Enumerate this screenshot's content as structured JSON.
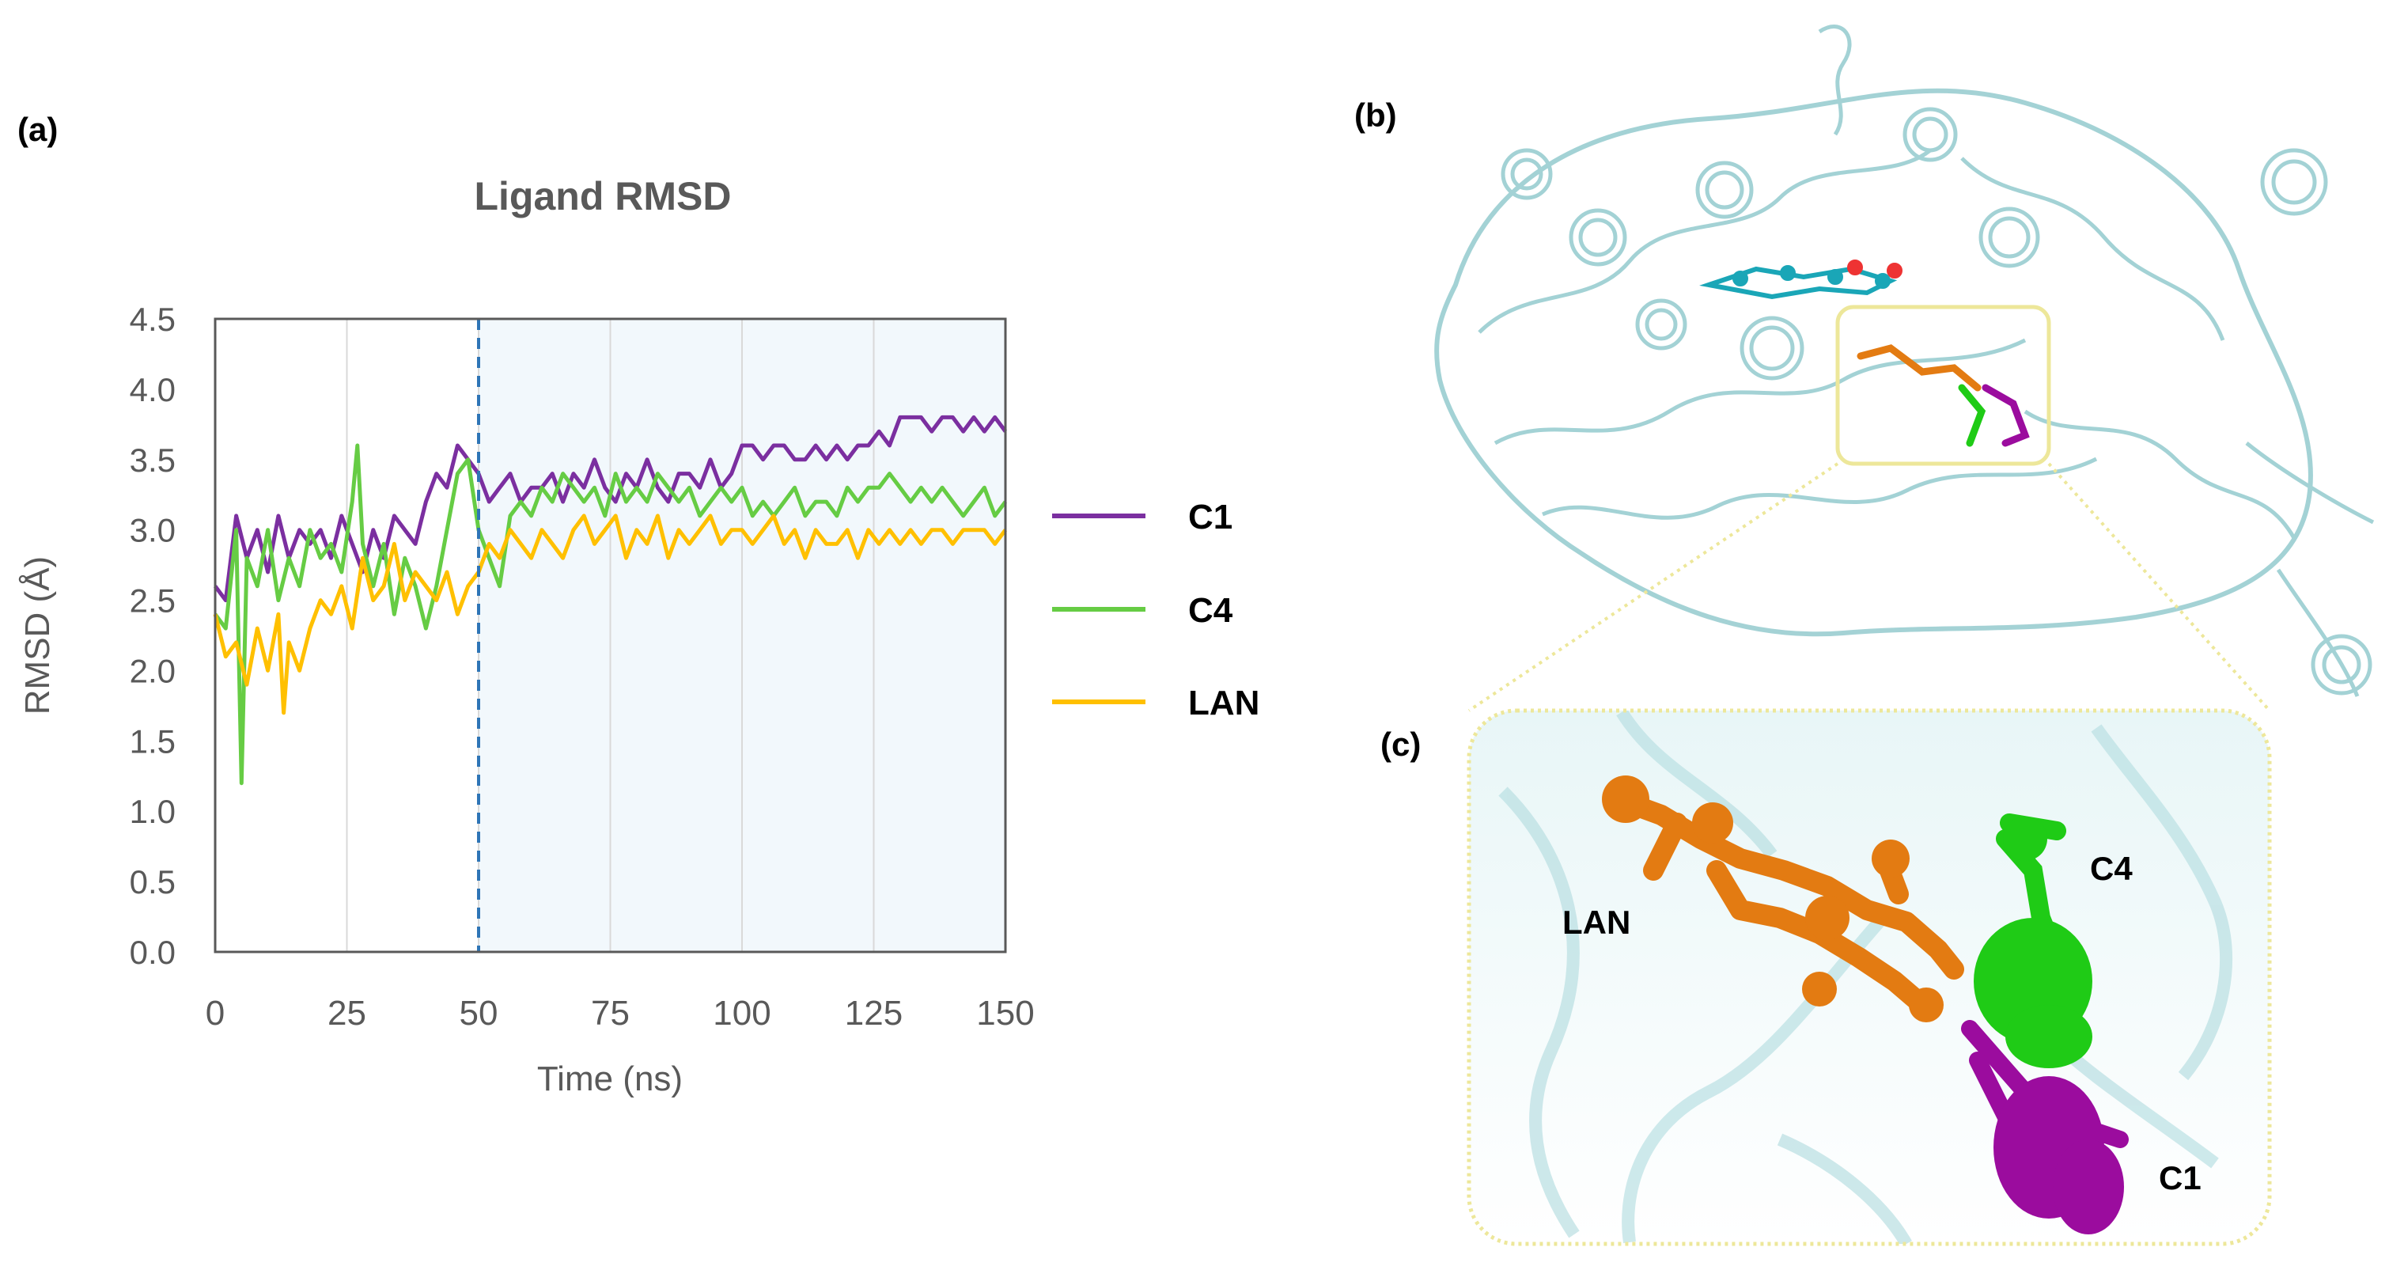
{
  "panels": {
    "a": "(a)",
    "b": "(b)",
    "c": "(c)"
  },
  "chart_data": {
    "type": "line",
    "title": "Ligand RMSD",
    "xlabel": "Time (ns)",
    "ylabel": "RMSD (Å)",
    "xlim": [
      0,
      150
    ],
    "ylim": [
      0,
      4.5
    ],
    "xticks": [
      0,
      25,
      50,
      75,
      100,
      125,
      150
    ],
    "yticks": [
      0.0,
      0.5,
      1.0,
      1.5,
      2.0,
      2.5,
      3.0,
      3.5,
      4.0,
      4.5
    ],
    "xtick_labels": [
      "0",
      "25",
      "50",
      "75",
      "100",
      "125",
      "150"
    ],
    "ytick_labels": [
      "0.0",
      "0.5",
      "1.0",
      "1.5",
      "2.0",
      "2.5",
      "3.0",
      "3.5",
      "4.0",
      "4.5"
    ],
    "grid": true,
    "marker_line_x": 50,
    "shaded_region": [
      50,
      150
    ],
    "legend_position": "right",
    "series": [
      {
        "name": "C1",
        "color": "#7B2FA0",
        "x": [
          0,
          2,
          4,
          6,
          8,
          10,
          12,
          14,
          16,
          18,
          20,
          22,
          24,
          26,
          28,
          30,
          32,
          34,
          36,
          38,
          40,
          42,
          44,
          46,
          48,
          50,
          52,
          54,
          56,
          58,
          60,
          62,
          64,
          66,
          68,
          70,
          72,
          74,
          76,
          78,
          80,
          82,
          84,
          86,
          88,
          90,
          92,
          94,
          96,
          98,
          100,
          102,
          104,
          106,
          108,
          110,
          112,
          114,
          116,
          118,
          120,
          122,
          124,
          126,
          128,
          130,
          132,
          134,
          136,
          138,
          140,
          142,
          144,
          146,
          148,
          150
        ],
        "y": [
          2.6,
          2.5,
          3.1,
          2.8,
          3.0,
          2.7,
          3.1,
          2.8,
          3.0,
          2.9,
          3.0,
          2.8,
          3.1,
          2.9,
          2.7,
          3.0,
          2.8,
          3.1,
          3.0,
          2.9,
          3.2,
          3.4,
          3.3,
          3.6,
          3.5,
          3.4,
          3.2,
          3.3,
          3.4,
          3.2,
          3.3,
          3.3,
          3.4,
          3.2,
          3.4,
          3.3,
          3.5,
          3.3,
          3.2,
          3.4,
          3.3,
          3.5,
          3.3,
          3.2,
          3.4,
          3.4,
          3.3,
          3.5,
          3.3,
          3.4,
          3.6,
          3.6,
          3.5,
          3.6,
          3.6,
          3.5,
          3.5,
          3.6,
          3.5,
          3.6,
          3.5,
          3.6,
          3.6,
          3.7,
          3.6,
          3.8,
          3.8,
          3.8,
          3.7,
          3.8,
          3.8,
          3.7,
          3.8,
          3.7,
          3.8,
          3.7
        ]
      },
      {
        "name": "C4",
        "color": "#66CC44",
        "x": [
          0,
          2,
          4,
          5,
          6,
          8,
          10,
          12,
          14,
          16,
          18,
          20,
          22,
          24,
          26,
          27,
          28,
          30,
          32,
          34,
          36,
          38,
          40,
          42,
          44,
          46,
          48,
          50,
          52,
          54,
          56,
          58,
          60,
          62,
          64,
          66,
          68,
          70,
          72,
          74,
          76,
          78,
          80,
          82,
          84,
          86,
          88,
          90,
          92,
          94,
          96,
          98,
          100,
          102,
          104,
          106,
          108,
          110,
          112,
          114,
          116,
          118,
          120,
          122,
          124,
          126,
          128,
          130,
          132,
          134,
          136,
          138,
          140,
          142,
          144,
          146,
          148,
          150
        ],
        "y": [
          2.4,
          2.3,
          3.0,
          1.2,
          2.8,
          2.6,
          3.0,
          2.5,
          2.8,
          2.6,
          3.0,
          2.8,
          2.9,
          2.7,
          3.2,
          3.6,
          2.9,
          2.6,
          2.9,
          2.4,
          2.8,
          2.6,
          2.3,
          2.6,
          3.0,
          3.4,
          3.5,
          3.0,
          2.8,
          2.6,
          3.1,
          3.2,
          3.1,
          3.3,
          3.2,
          3.4,
          3.3,
          3.2,
          3.3,
          3.1,
          3.4,
          3.2,
          3.3,
          3.2,
          3.4,
          3.3,
          3.2,
          3.3,
          3.1,
          3.2,
          3.3,
          3.2,
          3.3,
          3.1,
          3.2,
          3.1,
          3.2,
          3.3,
          3.1,
          3.2,
          3.2,
          3.1,
          3.3,
          3.2,
          3.3,
          3.3,
          3.4,
          3.3,
          3.2,
          3.3,
          3.2,
          3.3,
          3.2,
          3.1,
          3.2,
          3.3,
          3.1,
          3.2
        ]
      },
      {
        "name": "LAN",
        "color": "#FFC000",
        "x": [
          0,
          2,
          4,
          6,
          8,
          10,
          12,
          13,
          14,
          16,
          18,
          20,
          22,
          24,
          26,
          28,
          30,
          32,
          34,
          36,
          38,
          40,
          42,
          44,
          46,
          48,
          50,
          52,
          54,
          56,
          58,
          60,
          62,
          64,
          66,
          68,
          70,
          72,
          74,
          76,
          78,
          80,
          82,
          84,
          86,
          88,
          90,
          92,
          94,
          96,
          98,
          100,
          102,
          104,
          106,
          108,
          110,
          112,
          114,
          116,
          118,
          120,
          122,
          124,
          126,
          128,
          130,
          132,
          134,
          136,
          138,
          140,
          142,
          144,
          146,
          148,
          150
        ],
        "y": [
          2.4,
          2.1,
          2.2,
          1.9,
          2.3,
          2.0,
          2.4,
          1.7,
          2.2,
          2.0,
          2.3,
          2.5,
          2.4,
          2.6,
          2.3,
          2.8,
          2.5,
          2.6,
          2.9,
          2.5,
          2.7,
          2.6,
          2.5,
          2.7,
          2.4,
          2.6,
          2.7,
          2.9,
          2.8,
          3.0,
          2.9,
          2.8,
          3.0,
          2.9,
          2.8,
          3.0,
          3.1,
          2.9,
          3.0,
          3.1,
          2.8,
          3.0,
          2.9,
          3.1,
          2.8,
          3.0,
          2.9,
          3.0,
          3.1,
          2.9,
          3.0,
          3.0,
          2.9,
          3.0,
          3.1,
          2.9,
          3.0,
          2.8,
          3.0,
          2.9,
          2.9,
          3.0,
          2.8,
          3.0,
          2.9,
          3.0,
          2.9,
          3.0,
          2.9,
          3.0,
          3.0,
          2.9,
          3.0,
          3.0,
          3.0,
          2.9,
          3.0
        ]
      }
    ]
  },
  "structure": {
    "labels": {
      "lan": "LAN",
      "c4": "C4",
      "c1": "C1"
    },
    "colors": {
      "protein": "#9fd0d3",
      "lan": "#E37B12",
      "c4": "#1FCB16",
      "c1": "#9B0C9E",
      "heme": "#1aa6b7",
      "highlight": "#EDE79A"
    }
  }
}
